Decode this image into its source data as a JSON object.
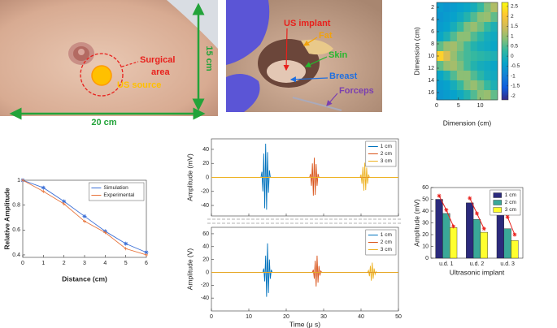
{
  "photos": [
    {
      "labels": {
        "surgical_area": [
          "Surgical",
          "area"
        ],
        "us_source": "US source",
        "width": "20 cm",
        "height": "15 cm"
      }
    },
    {
      "labels": {
        "us_implant": "US implant",
        "fat": "Fat",
        "skin": "Skin",
        "breast": "Breast",
        "forceps": "Forceps"
      }
    }
  ],
  "chart_data": [
    {
      "type": "heatmap",
      "xlabel": "Dimension (cm)",
      "ylabel": "Dimension (cm)",
      "x": [
        0.78,
        2.33,
        3.88,
        5.43,
        6.98,
        8.53,
        10.08,
        11.63,
        13.18
      ],
      "y": [
        2,
        3.6,
        5.2,
        6.8,
        8.4,
        10,
        11.6,
        13.2,
        14.8,
        16.4
      ],
      "values": [
        [
          -0.5,
          -0.6,
          -0.5,
          -0.4,
          -0.3,
          -0.1,
          0.3,
          0.8,
          1.2
        ],
        [
          -0.6,
          -0.5,
          -0.4,
          -0.2,
          0.1,
          0.5,
          0.9,
          1.0,
          0.6
        ],
        [
          -0.5,
          -0.4,
          -0.1,
          0.3,
          0.8,
          1.0,
          0.7,
          0.3,
          0.0
        ],
        [
          -0.3,
          0.0,
          0.5,
          0.9,
          0.9,
          0.5,
          0.2,
          -0.1,
          -0.2
        ],
        [
          0.6,
          1.0,
          1.1,
          0.8,
          0.4,
          0.1,
          -0.1,
          -0.2,
          -0.3
        ],
        [
          2.2,
          1.6,
          1.0,
          0.6,
          0.4,
          0.3,
          0.2,
          0.1,
          0.0
        ],
        [
          0.6,
          1.0,
          1.1,
          0.8,
          0.4,
          0.1,
          -0.1,
          -0.2,
          -0.3
        ],
        [
          -0.3,
          0.0,
          0.5,
          0.9,
          0.9,
          0.5,
          0.2,
          -0.1,
          -0.2
        ],
        [
          -0.5,
          -0.4,
          -0.1,
          0.3,
          0.8,
          1.0,
          0.7,
          0.3,
          0.0
        ],
        [
          -0.6,
          -0.5,
          -0.4,
          -0.2,
          0.1,
          0.5,
          0.9,
          1.0,
          0.6
        ]
      ],
      "xlim": [
        0,
        14
      ],
      "xticks": [
        0,
        5,
        10
      ],
      "ylim": [
        1.2,
        17.2
      ],
      "reverse_y": true,
      "yticks": [
        2,
        4,
        6,
        8,
        10,
        12,
        14,
        16
      ],
      "clim": [
        -2.2,
        2.7
      ],
      "cticks": [
        -2,
        -1.5,
        -1,
        -0.5,
        0,
        0.5,
        1,
        1.5,
        2,
        2.5
      ],
      "colormap": [
        "#352a87",
        "#0f5cdd",
        "#1481d6",
        "#06a4ca",
        "#2eb7a4",
        "#87bf77",
        "#d1bb59",
        "#fec832",
        "#f9fb0e"
      ]
    },
    {
      "type": "line",
      "xlabel": "Distance (cm)",
      "ylabel": "Relative Amplitude",
      "x": [
        0,
        1,
        2,
        3,
        4,
        5,
        6
      ],
      "series": [
        {
          "name": "Simulation",
          "color": "#3b6fd6",
          "marker": "star",
          "values": [
            1,
            0.94,
            0.83,
            0.71,
            0.59,
            0.49,
            0.42
          ]
        },
        {
          "name": "Experimental",
          "color": "#e8743b",
          "marker": "plus",
          "values": [
            1,
            0.91,
            0.81,
            0.67,
            0.58,
            0.45,
            0.4
          ]
        }
      ],
      "xlim": [
        0,
        6
      ],
      "xticks": [
        0,
        1,
        2,
        3,
        4,
        5,
        6
      ],
      "ylim": [
        0.38,
        1
      ],
      "yticks": [
        0.4,
        0.6,
        0.8,
        1
      ],
      "legend": "upper right"
    },
    {
      "type": "line",
      "ylabel": "Amplitude (mV)",
      "xticklabels": false,
      "series": [
        {
          "name": "1 cm",
          "color": "#0072bd",
          "x": [
            0,
            13.25,
            13.5,
            13.75,
            14,
            14.25,
            14.5,
            14.75,
            15,
            15.25,
            15.5,
            15.75,
            50
          ],
          "values": [
            0,
            0,
            8,
            -20,
            34,
            -44,
            48,
            -46,
            36,
            -22,
            10,
            0,
            0
          ]
        },
        {
          "name": "2 cm",
          "color": "#d95319",
          "x": [
            0,
            26.25,
            26.5,
            26.75,
            27,
            27.25,
            27.5,
            27.75,
            28,
            28.25,
            28.5,
            28.75,
            50
          ],
          "values": [
            0,
            0,
            5,
            -12,
            20,
            -26,
            28,
            -25,
            19,
            -12,
            5,
            0,
            0
          ]
        },
        {
          "name": "3 cm",
          "color": "#edb120",
          "x": [
            0,
            39.75,
            40,
            40.25,
            40.5,
            40.75,
            41,
            41.25,
            41.5,
            41.75,
            42,
            42.25,
            50
          ],
          "values": [
            0,
            0,
            4,
            -9,
            15,
            -19,
            21,
            -18,
            14,
            -9,
            4,
            0,
            0
          ]
        }
      ],
      "xlim": [
        0,
        50
      ],
      "xticks": [
        0,
        10,
        20,
        30,
        40,
        50
      ],
      "ylim": [
        -55,
        55
      ],
      "yticks": [
        -40,
        -20,
        0,
        20,
        40
      ],
      "legend": "upper right"
    },
    {
      "type": "line",
      "xlabel": "Time (μ s)",
      "ylabel": "Amplitude (V)",
      "series": [
        {
          "name": "1 cm",
          "color": "#0072bd",
          "x": [
            0,
            13.75,
            14,
            14.25,
            14.5,
            14.75,
            15,
            15.25,
            15.5,
            15.75,
            16,
            16.25,
            50
          ],
          "values": [
            0,
            0,
            6,
            -14,
            26,
            -38,
            45,
            -32,
            20,
            -10,
            4,
            0,
            0
          ]
        },
        {
          "name": "2 cm",
          "color": "#d95319",
          "x": [
            0,
            27,
            27.25,
            27.5,
            27.75,
            28,
            28.25,
            28.5,
            28.75,
            29,
            29.25,
            29.5,
            50
          ],
          "values": [
            0,
            0,
            4,
            -10,
            18,
            -22,
            26,
            -16,
            10,
            -5,
            2,
            0,
            0
          ]
        },
        {
          "name": "3 cm",
          "color": "#edb120",
          "x": [
            0,
            41.75,
            42,
            42.25,
            42.5,
            42.75,
            43,
            43.25,
            43.5,
            43.75,
            44,
            44.25,
            50
          ],
          "values": [
            0,
            0,
            3,
            -6,
            10,
            -13,
            15,
            -10,
            6,
            -3,
            1,
            0,
            0
          ]
        }
      ],
      "xlim": [
        0,
        50
      ],
      "xticks": [
        0,
        10,
        20,
        30,
        40,
        50
      ],
      "ylim": [
        -60,
        70
      ],
      "yticks": [
        -40,
        -20,
        0,
        20,
        40,
        60
      ],
      "legend": "upper right"
    },
    {
      "type": "bar",
      "xlabel": "Ultrasonic implant",
      "ylabel": "Amplitude (mV)",
      "categories": [
        "u.d. 1",
        "u.d. 2",
        "u.d. 3"
      ],
      "series": [
        {
          "name": "1 cm",
          "color": "#2b2a7c",
          "values": [
            50,
            47,
            42
          ]
        },
        {
          "name": "2 cm",
          "color": "#3aa898",
          "values": [
            38,
            33,
            25
          ]
        },
        {
          "name": "3 cm",
          "color": "#ffff2e",
          "values": [
            26,
            22,
            15
          ]
        }
      ],
      "overlay": {
        "color": "#e8201c",
        "values": [
          [
            53,
            41,
            27
          ],
          [
            51,
            38,
            25
          ],
          [
            46,
            35,
            20
          ]
        ]
      },
      "ylim": [
        0,
        60
      ],
      "yticks": [
        0,
        10,
        20,
        30,
        40,
        50,
        60
      ],
      "legend": "upper right"
    }
  ]
}
